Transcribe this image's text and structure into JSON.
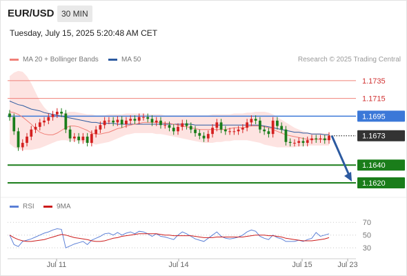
{
  "header": {
    "symbol": "EUR/USD",
    "timeframe": "30 MIN"
  },
  "timestamp": "Tuesday, July 15, 2025 5:20:48 AM CET",
  "legend": {
    "ma20": "MA 20 + Bollinger Bands",
    "ma50": "MA 50"
  },
  "credit": "Research © 2025 Trading Central",
  "rsi_legend": {
    "rsi": "RSI",
    "ma9": "9MA"
  },
  "colors": {
    "resistance": "#f08078",
    "support": "#1a7d1a",
    "pivot": "#3b78d8",
    "current": "#333333",
    "bullish": "#d42020",
    "bearish": "#1a7d1a",
    "ma20": "#f08078",
    "band": "#fde3e1",
    "ma50": "#2c5aa0",
    "arrow": "#2c5aa0",
    "rsi": "#5b7fd6",
    "rsi_ma": "#cc1a1a"
  },
  "chart_data": [
    {
      "type": "candlestick",
      "title": "EUR/USD 30 MIN",
      "x_ticks": [
        "Jul 11",
        "Jul 14",
        "Jul 15",
        "Jul 23"
      ],
      "ylim": [
        1.1606,
        1.1752
      ],
      "levels": [
        {
          "value": 1.1735,
          "label": "1.1735",
          "kind": "resistance"
        },
        {
          "value": 1.1715,
          "label": "1.1715",
          "kind": "resistance"
        },
        {
          "value": 1.1695,
          "label": "1.1695",
          "kind": "pivot"
        },
        {
          "value": 1.1673,
          "label": "1.1673",
          "kind": "current"
        },
        {
          "value": 1.164,
          "label": "1.1640",
          "kind": "support"
        },
        {
          "value": 1.162,
          "label": "1.1620",
          "kind": "support"
        }
      ],
      "forecast": {
        "from": 1.1673,
        "to": 1.162
      },
      "close": [
        1.1694,
        1.1678,
        1.166,
        1.1665,
        1.1672,
        1.168,
        1.1683,
        1.1688,
        1.169,
        1.1694,
        1.1697,
        1.17,
        1.1698,
        1.168,
        1.167,
        1.1672,
        1.1668,
        1.1672,
        1.1665,
        1.1675,
        1.168,
        1.1685,
        1.169,
        1.169,
        1.1688,
        1.1691,
        1.1686,
        1.169,
        1.1692,
        1.169,
        1.1694,
        1.1694,
        1.1692,
        1.1688,
        1.169,
        1.1685,
        1.1685,
        1.1682,
        1.1678,
        1.1683,
        1.1687,
        1.1684,
        1.168,
        1.1676,
        1.1673,
        1.167,
        1.1675,
        1.1682,
        1.1688,
        1.168,
        1.1678,
        1.1678,
        1.1678,
        1.168,
        1.1682,
        1.1688,
        1.1692,
        1.169,
        1.168,
        1.1678,
        1.1675,
        1.169,
        1.1684,
        1.168,
        1.1666,
        1.1665,
        1.1665,
        1.1667,
        1.1665,
        1.1668,
        1.167,
        1.1669,
        1.167,
        1.1668,
        1.1673
      ],
      "ma20": [
        1.17,
        1.1699,
        1.1697,
        1.1694,
        1.169,
        1.1686,
        1.1681,
        1.1677,
        1.1675,
        1.1674,
        1.1674,
        1.1676,
        1.1679,
        1.1682,
        1.1684,
        1.1684,
        1.1683,
        1.1681,
        1.1679,
        1.1676,
        1.1675,
        1.1675,
        1.1676,
        1.1677,
        1.1679,
        1.1681,
        1.1682,
        1.1684,
        1.1685,
        1.1686,
        1.1687,
        1.1688,
        1.1688,
        1.1688,
        1.1688,
        1.1688,
        1.1687,
        1.1687,
        1.1686,
        1.1685,
        1.1684,
        1.1683,
        1.1682,
        1.1681,
        1.168,
        1.168,
        1.168,
        1.168,
        1.168,
        1.168,
        1.168,
        1.1681,
        1.1682,
        1.1682,
        1.1682,
        1.1683,
        1.1684,
        1.1684,
        1.1684,
        1.1683,
        1.1682,
        1.168,
        1.1678,
        1.1676,
        1.1674,
        1.1673,
        1.1672,
        1.1671,
        1.167,
        1.1669,
        1.1669,
        1.1669,
        1.1669,
        1.1669,
        1.1669
      ],
      "upper_band": [
        1.174,
        1.1744,
        1.1746,
        1.1745,
        1.174,
        1.1732,
        1.1722,
        1.1712,
        1.1705,
        1.17,
        1.1697,
        1.1696,
        1.1698,
        1.1699,
        1.17,
        1.17,
        1.1699,
        1.1698,
        1.1697,
        1.1697,
        1.1696,
        1.1696,
        1.1696,
        1.1697,
        1.1697,
        1.1697,
        1.1697,
        1.1698,
        1.1698,
        1.1698,
        1.1698,
        1.1698,
        1.1697,
        1.1697,
        1.1697,
        1.1697,
        1.1696,
        1.1696,
        1.1696,
        1.1696,
        1.1696,
        1.1696,
        1.1696,
        1.1696,
        1.1696,
        1.1696,
        1.1696,
        1.1697,
        1.1697,
        1.1697,
        1.1697,
        1.1697,
        1.1698,
        1.1698,
        1.1698,
        1.1699,
        1.1699,
        1.17,
        1.17,
        1.17,
        1.1699,
        1.1697,
        1.1694,
        1.1691,
        1.1688,
        1.1685,
        1.1682,
        1.168,
        1.1678,
        1.1677,
        1.1676,
        1.1676,
        1.1676,
        1.1676,
        1.1676
      ],
      "lower_band": [
        1.1664,
        1.166,
        1.1658,
        1.1657,
        1.1657,
        1.1657,
        1.1658,
        1.1659,
        1.1661,
        1.1663,
        1.1665,
        1.1667,
        1.1668,
        1.1668,
        1.1667,
        1.1667,
        1.1667,
        1.1666,
        1.1665,
        1.1664,
        1.1663,
        1.1664,
        1.1665,
        1.1666,
        1.1668,
        1.167,
        1.1672,
        1.1674,
        1.1675,
        1.1676,
        1.1676,
        1.1676,
        1.1676,
        1.1676,
        1.1675,
        1.1675,
        1.1674,
        1.1673,
        1.1672,
        1.1671,
        1.167,
        1.1669,
        1.1668,
        1.1667,
        1.1666,
        1.1665,
        1.1665,
        1.1665,
        1.1666,
        1.1666,
        1.1667,
        1.1667,
        1.1668,
        1.1668,
        1.1668,
        1.1668,
        1.1667,
        1.1666,
        1.1665,
        1.1663,
        1.1662,
        1.1661,
        1.166,
        1.166,
        1.166,
        1.166,
        1.166,
        1.1661,
        1.1661,
        1.1662,
        1.1662,
        1.1662,
        1.1662,
        1.1662,
        1.1662
      ],
      "ma50": [
        1.1712,
        1.171,
        1.1708,
        1.1707,
        1.1705,
        1.1703,
        1.1702,
        1.1701,
        1.1699,
        1.1698,
        1.1697,
        1.1696,
        1.1695,
        1.1694,
        1.1693,
        1.1692,
        1.1691,
        1.169,
        1.1689,
        1.1688,
        1.1688,
        1.1687,
        1.1687,
        1.1687,
        1.1687,
        1.1686,
        1.1686,
        1.1686,
        1.1686,
        1.1686,
        1.1686,
        1.1686,
        1.1686,
        1.1686,
        1.1686,
        1.1686,
        1.1686,
        1.1686,
        1.1686,
        1.1686,
        1.1686,
        1.1686,
        1.1686,
        1.1685,
        1.1685,
        1.1685,
        1.1685,
        1.1685,
        1.1685,
        1.1685,
        1.1685,
        1.1685,
        1.1685,
        1.1685,
        1.1685,
        1.1685,
        1.1685,
        1.1685,
        1.1685,
        1.1684,
        1.1683,
        1.1682,
        1.1681,
        1.168,
        1.1679,
        1.1678,
        1.1677,
        1.1677,
        1.1676,
        1.1676,
        1.1675,
        1.1675,
        1.1675,
        1.1674,
        1.1674
      ]
    },
    {
      "type": "line",
      "title": "RSI",
      "ylim": [
        0,
        100
      ],
      "y_ticks": [
        70,
        50,
        30
      ],
      "series": [
        {
          "name": "RSI",
          "values": [
            50,
            35,
            32,
            40,
            42,
            44,
            47,
            50,
            53,
            55,
            58,
            60,
            59,
            30,
            33,
            36,
            38,
            40,
            35,
            42,
            45,
            48,
            52,
            53,
            50,
            54,
            50,
            53,
            55,
            52,
            56,
            55,
            52,
            48,
            52,
            48,
            47,
            45,
            43,
            50,
            55,
            52,
            48,
            44,
            42,
            40,
            45,
            50,
            55,
            48,
            45,
            44,
            45,
            47,
            50,
            55,
            58,
            56,
            48,
            45,
            43,
            50,
            46,
            44,
            40,
            40,
            40,
            42,
            40,
            43,
            45,
            54,
            48,
            50,
            52
          ]
        },
        {
          "name": "9MA",
          "values": [
            50,
            46,
            43,
            41,
            40,
            40,
            41,
            42,
            43,
            45,
            47,
            49,
            51,
            50,
            48,
            46,
            45,
            44,
            43,
            41,
            40,
            40,
            41,
            43,
            45,
            46,
            48,
            49,
            50,
            51,
            52,
            52,
            52,
            52,
            52,
            51,
            50,
            50,
            49,
            49,
            49,
            49,
            49,
            48,
            47,
            46,
            46,
            46,
            47,
            47,
            47,
            47,
            47,
            47,
            47,
            48,
            49,
            50,
            50,
            50,
            49,
            49,
            48,
            47,
            45,
            44,
            43,
            42,
            41,
            41,
            41,
            42,
            43,
            44,
            46
          ]
        }
      ]
    }
  ]
}
